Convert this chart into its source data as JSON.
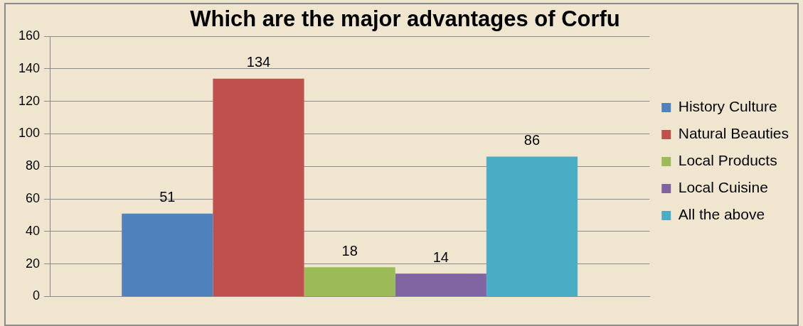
{
  "chart_data": {
    "type": "bar",
    "title": "Which are the major advantages of Corfu",
    "categories": [
      null
    ],
    "series": [
      {
        "name": "History Culture",
        "color": "#4f81bd",
        "values": [
          51
        ]
      },
      {
        "name": "Natural Beauties",
        "color": "#c0504d",
        "values": [
          134
        ]
      },
      {
        "name": "Local Products",
        "color": "#9bbb59",
        "values": [
          18
        ]
      },
      {
        "name": "Local Cuisine",
        "color": "#8064a2",
        "values": [
          14
        ]
      },
      {
        "name": "All the above",
        "color": "#4bacc6",
        "values": [
          86
        ]
      }
    ],
    "ylim": [
      0,
      160
    ],
    "yticks": [
      0,
      20,
      40,
      60,
      80,
      100,
      120,
      140,
      160
    ],
    "grid": "y",
    "legend": "right",
    "data_labels": true
  }
}
